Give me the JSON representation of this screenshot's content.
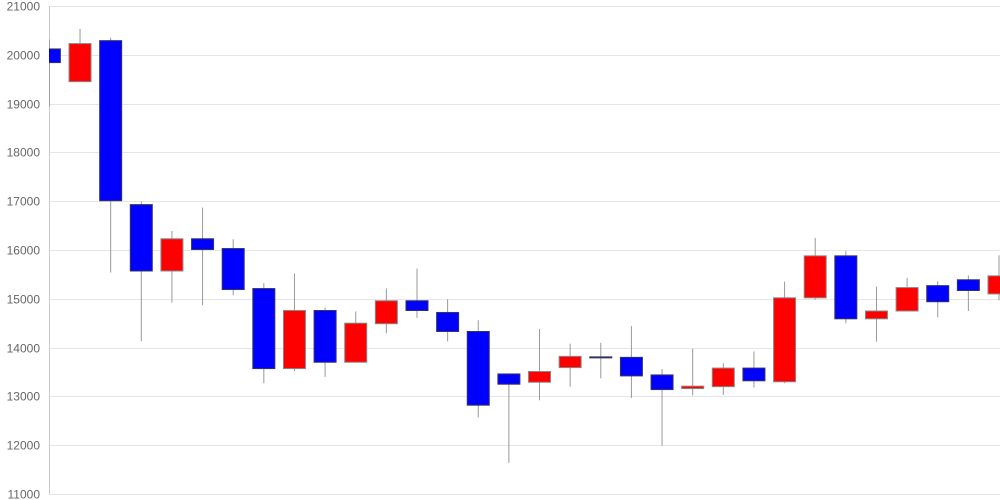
{
  "chart_data": {
    "type": "candlestick",
    "title": "",
    "xlabel": "",
    "ylabel": "",
    "ylim": [
      11000,
      21000
    ],
    "yticks": [
      "11000",
      "12000",
      "13000",
      "14000",
      "15000",
      "16000",
      "17000",
      "18000",
      "19000",
      "20000",
      "21000"
    ],
    "grid": true,
    "colors": {
      "up": "#ff0000",
      "down": "#0000ff",
      "wick": "#999999",
      "grid": "#e6e6e6",
      "axis": "#cccccc"
    },
    "candles": [
      {
        "open": 20120,
        "high": 20310,
        "low": 18940,
        "close": 19840
      },
      {
        "open": 19450,
        "high": 20530,
        "low": 19450,
        "close": 20230
      },
      {
        "open": 20290,
        "high": 20350,
        "low": 15540,
        "close": 17010
      },
      {
        "open": 16930,
        "high": 17000,
        "low": 14130,
        "close": 15570
      },
      {
        "open": 15570,
        "high": 16390,
        "low": 14920,
        "close": 16230
      },
      {
        "open": 16230,
        "high": 16870,
        "low": 14870,
        "close": 16010
      },
      {
        "open": 16030,
        "high": 16220,
        "low": 15070,
        "close": 15190
      },
      {
        "open": 15210,
        "high": 15320,
        "low": 13270,
        "close": 13570
      },
      {
        "open": 13570,
        "high": 15520,
        "low": 13520,
        "close": 14760
      },
      {
        "open": 14760,
        "high": 14820,
        "low": 13400,
        "close": 13700
      },
      {
        "open": 13700,
        "high": 14740,
        "low": 13700,
        "close": 14500
      },
      {
        "open": 14490,
        "high": 15210,
        "low": 14290,
        "close": 14960
      },
      {
        "open": 14960,
        "high": 15620,
        "low": 14610,
        "close": 14760
      },
      {
        "open": 14720,
        "high": 14990,
        "low": 14130,
        "close": 14330
      },
      {
        "open": 14330,
        "high": 14560,
        "low": 12570,
        "close": 12820
      },
      {
        "open": 13460,
        "high": 13460,
        "low": 11640,
        "close": 13250
      },
      {
        "open": 13290,
        "high": 14380,
        "low": 12920,
        "close": 13510
      },
      {
        "open": 13590,
        "high": 14080,
        "low": 13200,
        "close": 13820
      },
      {
        "open": 13810,
        "high": 14100,
        "low": 13370,
        "close": 13790
      },
      {
        "open": 13800,
        "high": 14440,
        "low": 12970,
        "close": 13420
      },
      {
        "open": 13440,
        "high": 13560,
        "low": 11990,
        "close": 13140
      },
      {
        "open": 13160,
        "high": 13980,
        "low": 13020,
        "close": 13210
      },
      {
        "open": 13200,
        "high": 13680,
        "low": 13030,
        "close": 13580
      },
      {
        "open": 13580,
        "high": 13920,
        "low": 13180,
        "close": 13320
      },
      {
        "open": 13300,
        "high": 15350,
        "low": 13270,
        "close": 15020
      },
      {
        "open": 15020,
        "high": 16250,
        "low": 14980,
        "close": 15880
      },
      {
        "open": 15880,
        "high": 15980,
        "low": 14500,
        "close": 14590
      },
      {
        "open": 14590,
        "high": 15250,
        "low": 14120,
        "close": 14750
      },
      {
        "open": 14750,
        "high": 15430,
        "low": 14750,
        "close": 15230
      },
      {
        "open": 15270,
        "high": 15360,
        "low": 14620,
        "close": 14940
      },
      {
        "open": 15390,
        "high": 15480,
        "low": 14750,
        "close": 15170
      },
      {
        "open": 15100,
        "high": 15890,
        "low": 14970,
        "close": 15470
      }
    ]
  }
}
